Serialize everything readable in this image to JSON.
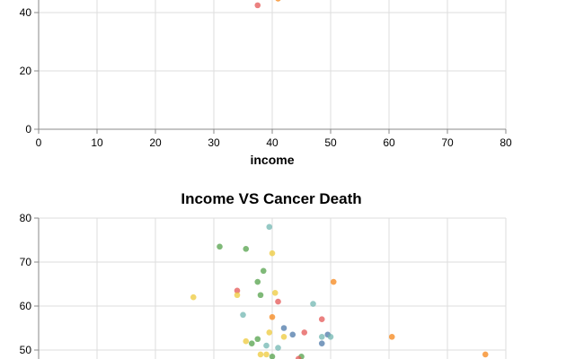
{
  "colors": {
    "grid": "#dddddd",
    "axis": "#888888",
    "palette": [
      "#4c78a8",
      "#f58518",
      "#e45756",
      "#72b7b2",
      "#54a24b",
      "#eeca3b"
    ]
  },
  "chart_data": [
    {
      "type": "scatter",
      "title": "",
      "xlabel": "income",
      "ylabel": "",
      "xlim": [
        0,
        80
      ],
      "ylim": [
        0,
        45
      ],
      "x_ticks": [
        "0",
        "10",
        "20",
        "30",
        "40",
        "50",
        "60",
        "70",
        "80"
      ],
      "y_ticks": [
        "0",
        "20",
        "40"
      ],
      "grid": true,
      "points": [
        {
          "x": 37.5,
          "y": 42.5,
          "c": 2
        },
        {
          "x": 41.0,
          "y": 44.8,
          "c": 1
        }
      ]
    },
    {
      "type": "scatter",
      "title": "Income VS Cancer Death",
      "xlabel": "",
      "ylabel": "",
      "xlim": [
        0,
        80
      ],
      "ylim": [
        45,
        80
      ],
      "x_ticks": [],
      "y_ticks": [
        "50",
        "60",
        "70",
        "80"
      ],
      "grid": true,
      "points": [
        {
          "x": 31.0,
          "y": 73.5,
          "c": 4
        },
        {
          "x": 35.5,
          "y": 73.0,
          "c": 4
        },
        {
          "x": 39.5,
          "y": 78.0,
          "c": 3
        },
        {
          "x": 40.0,
          "y": 72.0,
          "c": 5
        },
        {
          "x": 38.5,
          "y": 68.0,
          "c": 4
        },
        {
          "x": 37.5,
          "y": 65.5,
          "c": 4
        },
        {
          "x": 26.5,
          "y": 62.0,
          "c": 5
        },
        {
          "x": 34.0,
          "y": 63.5,
          "c": 2
        },
        {
          "x": 34.0,
          "y": 62.5,
          "c": 5
        },
        {
          "x": 38.0,
          "y": 62.5,
          "c": 4
        },
        {
          "x": 40.5,
          "y": 63.0,
          "c": 5
        },
        {
          "x": 41.0,
          "y": 61.0,
          "c": 2
        },
        {
          "x": 35.0,
          "y": 58.0,
          "c": 3
        },
        {
          "x": 47.0,
          "y": 60.5,
          "c": 3
        },
        {
          "x": 50.5,
          "y": 65.5,
          "c": 1
        },
        {
          "x": 40.0,
          "y": 57.5,
          "c": 1
        },
        {
          "x": 48.5,
          "y": 57.0,
          "c": 2
        },
        {
          "x": 42.0,
          "y": 55.0,
          "c": 0
        },
        {
          "x": 43.5,
          "y": 53.5,
          "c": 0
        },
        {
          "x": 45.5,
          "y": 54.0,
          "c": 2
        },
        {
          "x": 39.5,
          "y": 54.0,
          "c": 5
        },
        {
          "x": 42.0,
          "y": 53.0,
          "c": 5
        },
        {
          "x": 48.5,
          "y": 53.0,
          "c": 3
        },
        {
          "x": 49.5,
          "y": 53.5,
          "c": 0
        },
        {
          "x": 50.0,
          "y": 53.0,
          "c": 3
        },
        {
          "x": 60.5,
          "y": 53.0,
          "c": 1
        },
        {
          "x": 35.5,
          "y": 52.0,
          "c": 5
        },
        {
          "x": 36.5,
          "y": 51.5,
          "c": 4
        },
        {
          "x": 37.5,
          "y": 52.5,
          "c": 4
        },
        {
          "x": 39.0,
          "y": 51.0,
          "c": 3
        },
        {
          "x": 41.0,
          "y": 50.5,
          "c": 3
        },
        {
          "x": 48.5,
          "y": 51.5,
          "c": 0
        },
        {
          "x": 38.0,
          "y": 49.0,
          "c": 5
        },
        {
          "x": 39.0,
          "y": 49.0,
          "c": 5
        },
        {
          "x": 40.0,
          "y": 48.5,
          "c": 4
        },
        {
          "x": 45.0,
          "y": 48.5,
          "c": 4
        },
        {
          "x": 44.5,
          "y": 48.0,
          "c": 2
        },
        {
          "x": 76.5,
          "y": 49.0,
          "c": 1
        }
      ]
    }
  ]
}
